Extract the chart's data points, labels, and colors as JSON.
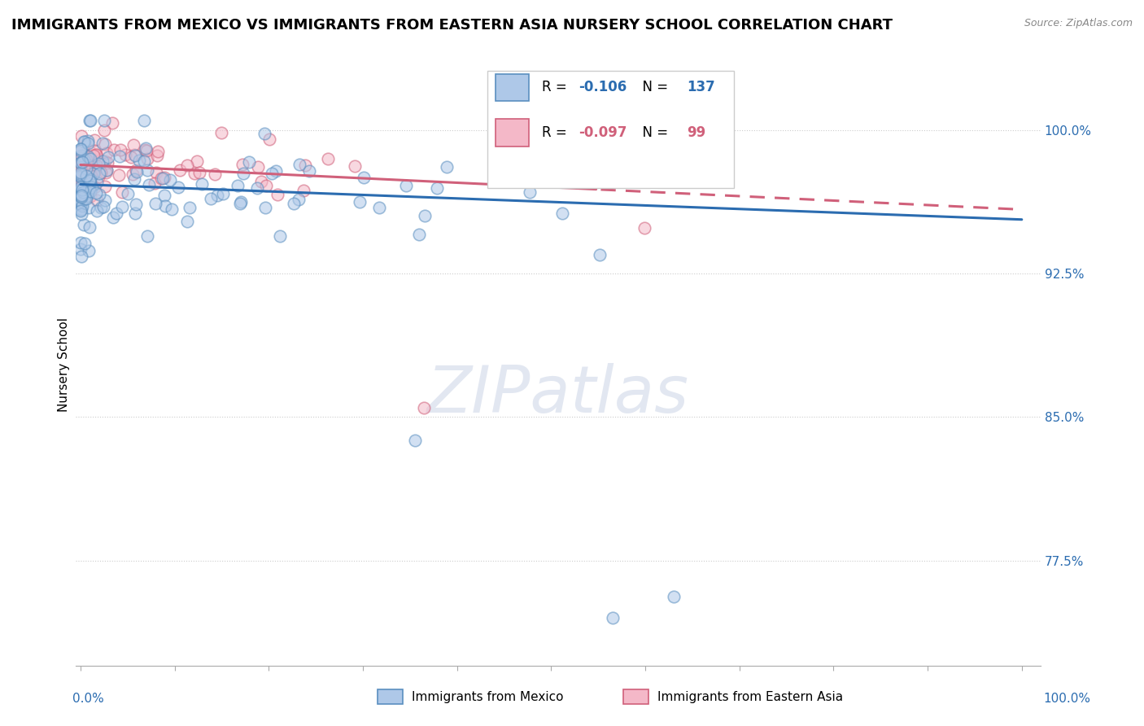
{
  "title": "IMMIGRANTS FROM MEXICO VS IMMIGRANTS FROM EASTERN ASIA NURSERY SCHOOL CORRELATION CHART",
  "source": "Source: ZipAtlas.com",
  "ylabel": "Nursery School",
  "ytick_positions": [
    0.775,
    0.85,
    0.925,
    1.0
  ],
  "ytick_labels": [
    "77.5%",
    "85.0%",
    "92.5%",
    "100.0%"
  ],
  "ylim": [
    0.72,
    1.035
  ],
  "xlim": [
    -0.005,
    1.02
  ],
  "series_mexico": {
    "R": -0.106,
    "N": 137,
    "color": "#aec8e8",
    "edge_color": "#5a8fc0",
    "line_color": "#2b6cb0",
    "label": "Immigrants from Mexico"
  },
  "series_eastern_asia": {
    "R": -0.097,
    "N": 99,
    "color": "#f4b8c8",
    "edge_color": "#d0607a",
    "line_color": "#d0607a",
    "label": "Immigrants from Eastern Asia"
  },
  "background_color": "white",
  "grid_color": "#cccccc",
  "scatter_alpha": 0.55,
  "scatter_size": 110,
  "title_fontsize": 13,
  "axis_label_fontsize": 11,
  "tick_fontsize": 11,
  "legend_fontsize": 12,
  "scatter_linewidth": 1.2,
  "watermark_color": "#d0d8e8",
  "watermark_alpha": 0.6
}
